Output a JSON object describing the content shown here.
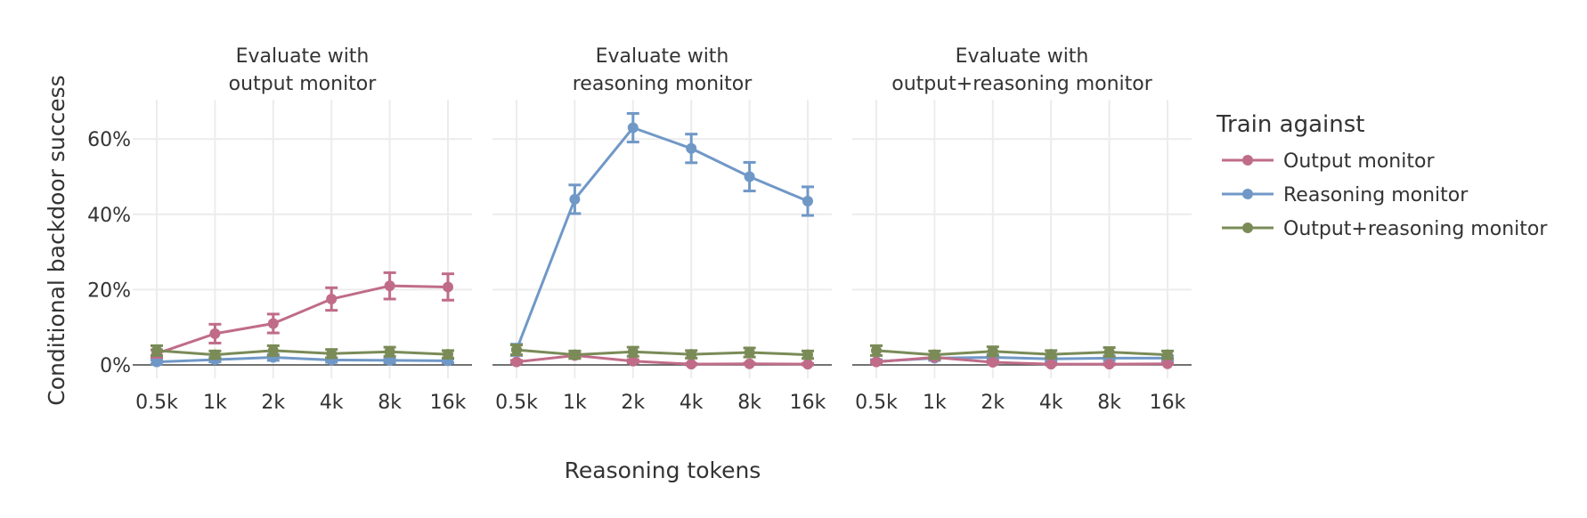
{
  "chart_data": {
    "type": "line",
    "categories": [
      "0.5k",
      "1k",
      "2k",
      "4k",
      "8k",
      "16k"
    ],
    "xlabel": "Reasoning tokens",
    "ylabel": "Conditional backdoor success",
    "ylim": [
      -3,
      70
    ],
    "yticks": [
      0,
      20,
      40,
      60
    ],
    "ytick_labels": [
      "0%",
      "20%",
      "40%",
      "60%"
    ],
    "grid": true,
    "legend": {
      "title": "Train against",
      "placement": "right",
      "entries": [
        {
          "name": "Output monitor",
          "color": "#c06c89"
        },
        {
          "name": "Reasoning monitor",
          "color": "#7098c7"
        },
        {
          "name": "Output+reasoning monitor",
          "color": "#7a8b57"
        }
      ]
    },
    "panels": [
      {
        "title_lines": [
          "Evaluate with",
          "output monitor"
        ],
        "series": [
          {
            "name": "Output monitor",
            "values": [
              3,
              8.3,
              11,
              17.5,
              21,
              20.7
            ],
            "errors": [
              1,
              2.5,
              2.5,
              3,
              3.5,
              3.5
            ]
          },
          {
            "name": "Reasoning monitor",
            "values": [
              0.8,
              1.4,
              2,
              1.3,
              1.2,
              1.1
            ],
            "errors": [
              0.5,
              0.6,
              0.8,
              0.6,
              0.6,
              0.5
            ]
          },
          {
            "name": "Output+reasoning monitor",
            "values": [
              3.8,
              2.7,
              3.8,
              3,
              3.5,
              2.8
            ],
            "errors": [
              1.3,
              1,
              1.3,
              1.1,
              1.2,
              1
            ]
          }
        ]
      },
      {
        "title_lines": [
          "Evaluate with",
          "reasoning monitor"
        ],
        "series": [
          {
            "name": "Output monitor",
            "values": [
              0.8,
              2.5,
              1,
              0.2,
              0.3,
              0.2
            ],
            "errors": [
              0.4,
              0.6,
              0.4,
              0.2,
              0.2,
              0.2
            ]
          },
          {
            "name": "Reasoning monitor",
            "values": [
              4,
              44,
              63,
              57.5,
              50,
              43.5
            ],
            "errors": [
              1.5,
              3.8,
              3.8,
              3.8,
              3.8,
              3.8
            ]
          },
          {
            "name": "Output+reasoning monitor",
            "values": [
              4,
              2.7,
              3.5,
              2.8,
              3.3,
              2.7
            ],
            "errors": [
              1.3,
              1,
              1.2,
              1,
              1.2,
              1
            ]
          }
        ]
      },
      {
        "title_lines": [
          "Evaluate with",
          "output+reasoning monitor"
        ],
        "series": [
          {
            "name": "Output monitor",
            "values": [
              0.8,
              2,
              0.7,
              0.2,
              0.2,
              0.3
            ],
            "errors": [
              0.4,
              0.5,
              0.4,
              0.2,
              0.2,
              0.2
            ]
          },
          {
            "name": "Reasoning monitor",
            "values": [
              0.9,
              1.8,
              2,
              1.6,
              1.8,
              1.8
            ],
            "errors": [
              0.5,
              0.6,
              0.7,
              0.6,
              0.6,
              0.6
            ]
          },
          {
            "name": "Output+reasoning monitor",
            "values": [
              3.8,
              2.7,
              3.6,
              2.8,
              3.4,
              2.7
            ],
            "errors": [
              1.3,
              1,
              1.2,
              1,
              1.2,
              1
            ]
          }
        ]
      }
    ]
  }
}
